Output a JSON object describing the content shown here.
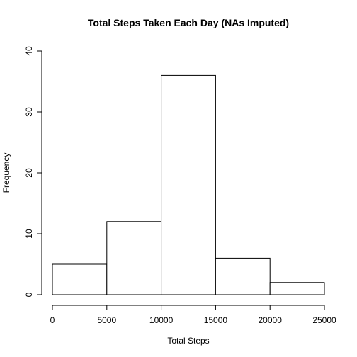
{
  "chart_data": {
    "type": "histogram",
    "title": "Total Steps Taken Each Day (NAs Imputed)",
    "xlabel": "Total Steps",
    "ylabel": "Frequency",
    "bins": [
      {
        "start": 0,
        "end": 5000,
        "value": 5
      },
      {
        "start": 5000,
        "end": 10000,
        "value": 12
      },
      {
        "start": 10000,
        "end": 15000,
        "value": 36
      },
      {
        "start": 15000,
        "end": 20000,
        "value": 6
      },
      {
        "start": 20000,
        "end": 25000,
        "value": 2
      }
    ],
    "xlim": [
      0,
      25000
    ],
    "ylim": [
      0,
      40
    ],
    "xticks": [
      0,
      5000,
      10000,
      15000,
      20000,
      25000
    ],
    "yticks": [
      0,
      10,
      20,
      30,
      40
    ],
    "grid": false,
    "legend": "none",
    "bar_fill": "#ffffff",
    "bar_stroke": "#000000"
  }
}
